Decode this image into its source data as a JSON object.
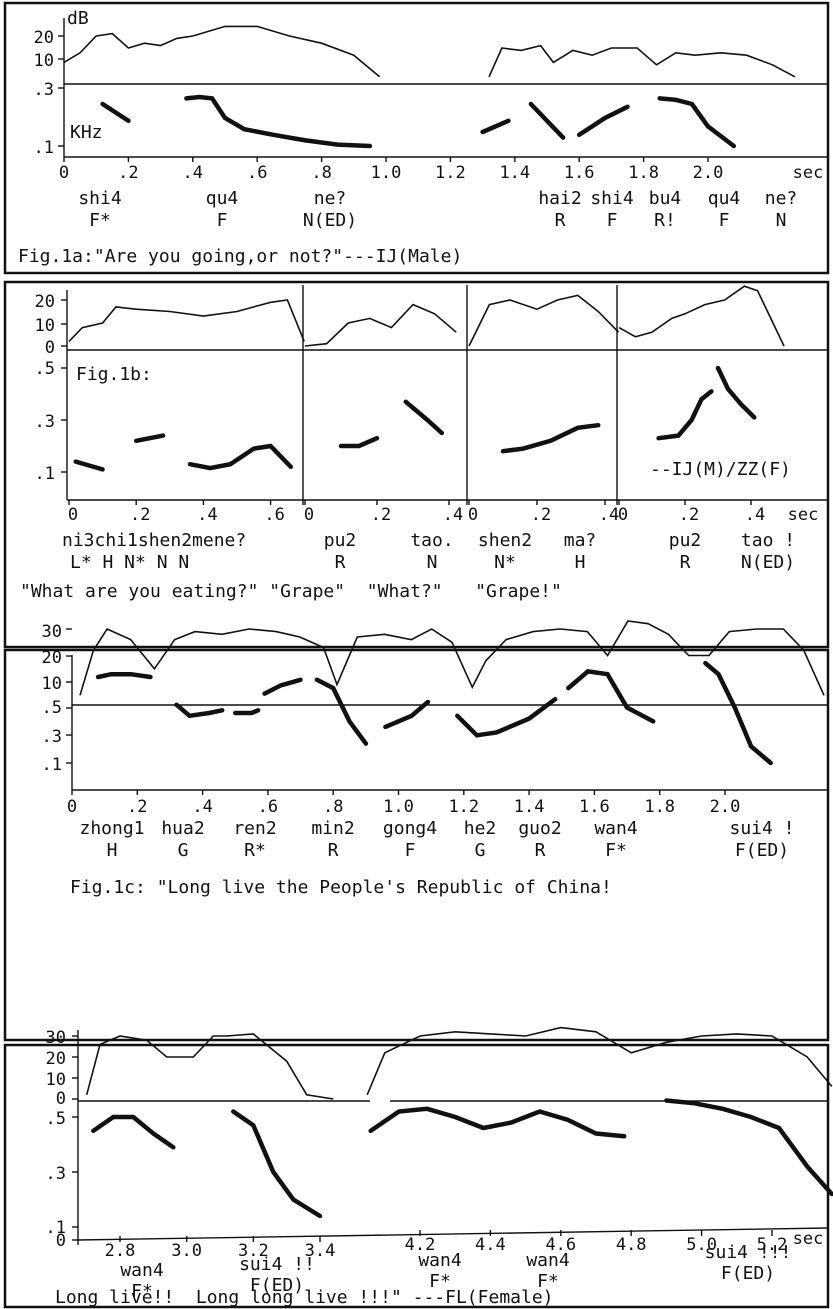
{
  "chart_data": [
    {
      "type": "line",
      "title": "Fig.1a:\"Are you going,or not?\"---IJ(Male)",
      "db_axis_label": "dB",
      "f0_axis_label": "KHz",
      "db_ticks": [
        "20",
        "10",
        ".3"
      ],
      "f0_ticks": [
        ".3",
        ".1"
      ],
      "x_unit": "sec",
      "x_ticks": [
        "0",
        ".2",
        ".4",
        ".6",
        ".8",
        "1.0",
        "1.2",
        "1.4",
        "1.6",
        "1.8",
        "2.0"
      ],
      "syllables": [
        {
          "text": "shi4",
          "tone": "F*"
        },
        {
          "text": "qu4",
          "tone": "F"
        },
        {
          "text": "ne?",
          "tone": "N(ED)"
        },
        {
          "text": "hai2",
          "tone": "R"
        },
        {
          "text": "shi4",
          "tone": "F"
        },
        {
          "text": "bu4",
          "tone": "R!"
        },
        {
          "text": "qu4",
          "tone": "F"
        },
        {
          "text": "ne?",
          "tone": "N"
        }
      ],
      "series": [
        {
          "name": "dB",
          "segments": [
            {
              "t": [
                0,
                0.05,
                0.1,
                0.15,
                0.2,
                0.25,
                0.3,
                0.35,
                0.4,
                0.5,
                0.6,
                0.7,
                0.8,
                0.9,
                0.98
              ],
              "v": [
                9,
                13,
                20,
                21,
                15,
                17,
                16,
                19,
                20,
                24,
                24,
                20,
                17,
                12,
                3
              ]
            },
            {
              "t": [
                1.32,
                1.36,
                1.42,
                1.48,
                1.52,
                1.58,
                1.64,
                1.7,
                1.78,
                1.84,
                1.9,
                1.96,
                2.04,
                2.12,
                2.2,
                2.27
              ],
              "v": [
                3,
                15,
                14,
                16,
                9,
                14,
                12,
                15,
                15,
                8,
                13,
                12,
                13,
                12,
                8,
                3
              ]
            }
          ]
        },
        {
          "name": "F0",
          "segments": [
            {
              "t": [
                0.12,
                0.2
              ],
              "v": [
                0.25,
                0.19
              ]
            },
            {
              "t": [
                0.38,
                0.42,
                0.46,
                0.5,
                0.56,
                0.65,
                0.75,
                0.85,
                0.95
              ],
              "v": [
                0.27,
                0.275,
                0.27,
                0.2,
                0.16,
                0.14,
                0.12,
                0.105,
                0.1
              ]
            },
            {
              "t": [
                1.3,
                1.38
              ],
              "v": [
                0.15,
                0.19
              ]
            },
            {
              "t": [
                1.45,
                1.55
              ],
              "v": [
                0.25,
                0.13
              ]
            },
            {
              "t": [
                1.6,
                1.68,
                1.75
              ],
              "v": [
                0.14,
                0.2,
                0.24
              ]
            },
            {
              "t": [
                1.85,
                1.9,
                1.95,
                2.0,
                2.08
              ],
              "v": [
                0.27,
                0.265,
                0.25,
                0.17,
                0.1
              ]
            }
          ]
        }
      ]
    },
    {
      "type": "line",
      "title": "\"What are you eating?\" \"Grape\"  \"What?\"   \"Grape!\"",
      "panel_label": "Fig.1b:",
      "speaker_label": "--IJ(M)/ZZ(F)",
      "db_ticks": [
        "20",
        "10",
        "0"
      ],
      "f0_ticks": [
        ".5",
        ".3",
        ".1"
      ],
      "x_unit": "sec",
      "subpanels": [
        {
          "x_ticks": [
            "0",
            ".2",
            ".4",
            ".6"
          ],
          "x_range": [
            0,
            0.7
          ],
          "syllables": [
            {
              "text": "ni3chi1shen2mene?",
              "tone": "L*  H    N*   N N"
            }
          ],
          "db": [
            {
              "t": [
                0,
                0.04,
                0.1,
                0.14,
                0.2,
                0.3,
                0.4,
                0.5,
                0.6,
                0.65,
                0.7
              ],
              "v": [
                2,
                8,
                10,
                17,
                16,
                15,
                13,
                15,
                19,
                20,
                2
              ]
            }
          ],
          "f0": [
            {
              "t": [
                0.02,
                0.1
              ],
              "v": [
                0.14,
                0.11
              ]
            },
            {
              "t": [
                0.2,
                0.28
              ],
              "v": [
                0.22,
                0.24
              ]
            },
            {
              "t": [
                0.36,
                0.42,
                0.48,
                0.55,
                0.6,
                0.66
              ],
              "v": [
                0.13,
                0.115,
                0.13,
                0.19,
                0.2,
                0.12
              ]
            }
          ]
        },
        {
          "x_ticks": [
            "0",
            ".2",
            ".4"
          ],
          "x_range": [
            0,
            0.44
          ],
          "syllables": [
            {
              "text": "pu2",
              "tone": "R"
            },
            {
              "text": "tao.",
              "tone": "N"
            }
          ],
          "db": [
            {
              "t": [
                0,
                0.06,
                0.12,
                0.18,
                0.24,
                0.3,
                0.36,
                0.42
              ],
              "v": [
                0,
                1,
                10,
                12,
                8,
                18,
                14,
                6
              ]
            }
          ],
          "f0": [
            {
              "t": [
                0.1,
                0.15,
                0.2
              ],
              "v": [
                0.2,
                0.2,
                0.23
              ]
            },
            {
              "t": [
                0.28,
                0.34,
                0.38
              ],
              "v": [
                0.37,
                0.3,
                0.25
              ]
            }
          ]
        },
        {
          "x_ticks": [
            "0",
            ".2",
            ".4"
          ],
          "x_range": [
            0,
            0.44
          ],
          "syllables": [
            {
              "text": "shen2",
              "tone": "N*"
            },
            {
              "text": "ma?",
              "tone": "H"
            }
          ],
          "db": [
            {
              "t": [
                0,
                0.06,
                0.12,
                0.2,
                0.26,
                0.32,
                0.38,
                0.44
              ],
              "v": [
                0,
                18,
                20,
                16,
                20,
                22,
                15,
                6
              ]
            }
          ],
          "f0": [
            {
              "t": [
                0.1,
                0.16,
                0.24,
                0.32,
                0.38
              ],
              "v": [
                0.18,
                0.19,
                0.22,
                0.27,
                0.28
              ]
            }
          ]
        },
        {
          "x_ticks": [
            "0",
            ".2",
            ".4"
          ],
          "x_range": [
            0,
            0.52
          ],
          "syllables": [
            {
              "text": "pu2",
              "tone": "R"
            },
            {
              "text": "tao !",
              "tone": "N(ED)"
            }
          ],
          "db": [
            {
              "t": [
                0,
                0.05,
                0.1,
                0.16,
                0.2,
                0.26,
                0.32,
                0.38,
                0.42,
                0.5
              ],
              "v": [
                8,
                4,
                6,
                12,
                14,
                18,
                20,
                26,
                24,
                0
              ]
            }
          ],
          "f0": [
            {
              "t": [
                0.12,
                0.18,
                0.22,
                0.25,
                0.28
              ],
              "v": [
                0.23,
                0.24,
                0.3,
                0.38,
                0.41
              ]
            },
            {
              "t": [
                0.3,
                0.33,
                0.37,
                0.41
              ],
              "v": [
                0.5,
                0.42,
                0.36,
                0.31
              ]
            }
          ]
        }
      ]
    },
    {
      "type": "line",
      "title": "Fig.1c: \"Long live the People's Republic of China!",
      "db_ticks": [
        "30",
        "20",
        "10"
      ],
      "f0_ticks": [
        ".5",
        ".3",
        ".1"
      ],
      "x_ticks": [
        "0",
        ".2",
        ".4",
        ".6",
        ".8",
        "1.0",
        "1.2",
        "1.4",
        "1.6",
        "1.8",
        "2.0"
      ],
      "syllables": [
        {
          "text": "zhong1",
          "tone": "H"
        },
        {
          "text": "hua2",
          "tone": "G"
        },
        {
          "text": "ren2",
          "tone": "R*"
        },
        {
          "text": "min2",
          "tone": "R"
        },
        {
          "text": "gong4",
          "tone": "F"
        },
        {
          "text": "he2",
          "tone": "G"
        },
        {
          "text": "guo2",
          "tone": "R"
        },
        {
          "text": "wan4",
          "tone": "F*"
        },
        {
          "text": "sui4 !",
          "tone": "F(ED)"
        }
      ],
      "series": [
        {
          "name": "dB",
          "segments": [
            {
              "t": [
                0.0,
                0.04,
                0.08,
                0.15,
                0.22,
                0.28,
                0.34,
                0.42,
                0.5,
                0.58,
                0.65,
                0.72,
                0.76,
                0.82,
                0.9,
                0.98,
                1.04,
                1.1,
                1.16,
                1.2,
                1.26,
                1.34,
                1.42,
                1.5,
                1.56,
                1.62,
                1.68,
                1.74,
                1.8,
                1.86,
                1.92,
                2.0,
                2.08,
                2.14,
                2.2
              ],
              "v": [
                5,
                22,
                30,
                26,
                15,
                26,
                29,
                28,
                30,
                29,
                27,
                23,
                9,
                27,
                28,
                26,
                30,
                25,
                8,
                18,
                26,
                29,
                30,
                29,
                20,
                33,
                32,
                28,
                20,
                20,
                29,
                30,
                30,
                22,
                5
              ]
            }
          ]
        },
        {
          "name": "F0",
          "segments": [
            {
              "t": [
                0.08,
                0.12,
                0.18,
                0.24
              ],
              "v": [
                0.41,
                0.42,
                0.42,
                0.41
              ]
            },
            {
              "t": [
                0.32,
                0.36,
                0.42,
                0.46
              ],
              "v": [
                0.31,
                0.27,
                0.28,
                0.29
              ]
            },
            {
              "t": [
                0.5,
                0.55,
                0.57
              ],
              "v": [
                0.28,
                0.28,
                0.29
              ]
            },
            {
              "t": [
                0.59,
                0.64,
                0.7
              ],
              "v": [
                0.35,
                0.38,
                0.4
              ]
            },
            {
              "t": [
                0.75,
                0.8,
                0.85,
                0.9
              ],
              "v": [
                0.4,
                0.37,
                0.25,
                0.17
              ]
            },
            {
              "t": [
                0.96,
                1.04,
                1.09
              ],
              "v": [
                0.23,
                0.27,
                0.32
              ]
            },
            {
              "t": [
                1.18,
                1.24,
                1.3,
                1.4,
                1.48
              ],
              "v": [
                0.27,
                0.2,
                0.21,
                0.26,
                0.33
              ]
            },
            {
              "t": [
                1.52,
                1.58,
                1.64,
                1.7,
                1.78
              ],
              "v": [
                0.37,
                0.43,
                0.42,
                0.3,
                0.25
              ]
            },
            {
              "t": [
                1.94,
                1.98,
                2.03,
                2.08,
                2.14
              ],
              "v": [
                0.46,
                0.42,
                0.3,
                0.16,
                0.1
              ]
            }
          ]
        }
      ]
    },
    {
      "type": "line",
      "title": "Long live!!  Long long live !!!\" ---FL(Female)",
      "db_ticks": [
        "30",
        "20",
        "10",
        "0"
      ],
      "f0_ticks": [
        ".5",
        ".3",
        ".1",
        "0"
      ],
      "x_unit": "sec",
      "x_ticks_left": [
        "2.8",
        "3.0",
        "3.2",
        "3.4"
      ],
      "x_ticks_right": [
        "4.2",
        "4.4",
        "4.6",
        "4.8",
        "5.0",
        "5.2"
      ],
      "syllables": [
        {
          "text": "wan4",
          "tone": "F*"
        },
        {
          "text": "sui4 !!",
          "tone": "F(ED)"
        },
        {
          "text": "wan4",
          "tone": "F*"
        },
        {
          "text": "wan4",
          "tone": "F*"
        },
        {
          "text": "sui4 !!!",
          "tone": "F(ED)"
        }
      ],
      "series": [
        {
          "name": "dB",
          "segments": [
            {
              "t": [
                2.7,
                2.74,
                2.8,
                2.88,
                2.94,
                3.02,
                3.08,
                3.12,
                3.2,
                3.3,
                3.36,
                3.44
              ],
              "v": [
                2,
                26,
                30,
                28,
                20,
                20,
                30,
                30,
                31,
                18,
                2,
                0
              ]
            },
            {
              "t": [
                4.05,
                4.1,
                4.2,
                4.3,
                4.4,
                4.5,
                4.6,
                4.7,
                4.8,
                4.9,
                5.0,
                5.1,
                5.2,
                5.3,
                5.37
              ],
              "v": [
                2,
                22,
                30,
                32,
                31,
                30,
                34,
                32,
                22,
                27,
                30,
                31,
                30,
                20,
                6
              ]
            }
          ]
        },
        {
          "name": "F0",
          "segments": [
            {
              "t": [
                2.72,
                2.78,
                2.84,
                2.9,
                2.96
              ],
              "v": [
                0.45,
                0.5,
                0.5,
                0.44,
                0.39
              ]
            },
            {
              "t": [
                3.14,
                3.2,
                3.26,
                3.32,
                3.4
              ],
              "v": [
                0.52,
                0.47,
                0.3,
                0.2,
                0.14
              ]
            },
            {
              "t": [
                4.06,
                4.14,
                4.22,
                4.3,
                4.38,
                4.46,
                4.54,
                4.62,
                4.7,
                4.78
              ],
              "v": [
                0.45,
                0.52,
                0.53,
                0.5,
                0.46,
                0.48,
                0.52,
                0.49,
                0.44,
                0.43
              ]
            },
            {
              "t": [
                4.9,
                4.98,
                5.06,
                5.14,
                5.22,
                5.3,
                5.37
              ],
              "v": [
                0.56,
                0.55,
                0.53,
                0.5,
                0.46,
                0.32,
                0.22
              ]
            }
          ]
        }
      ]
    }
  ]
}
